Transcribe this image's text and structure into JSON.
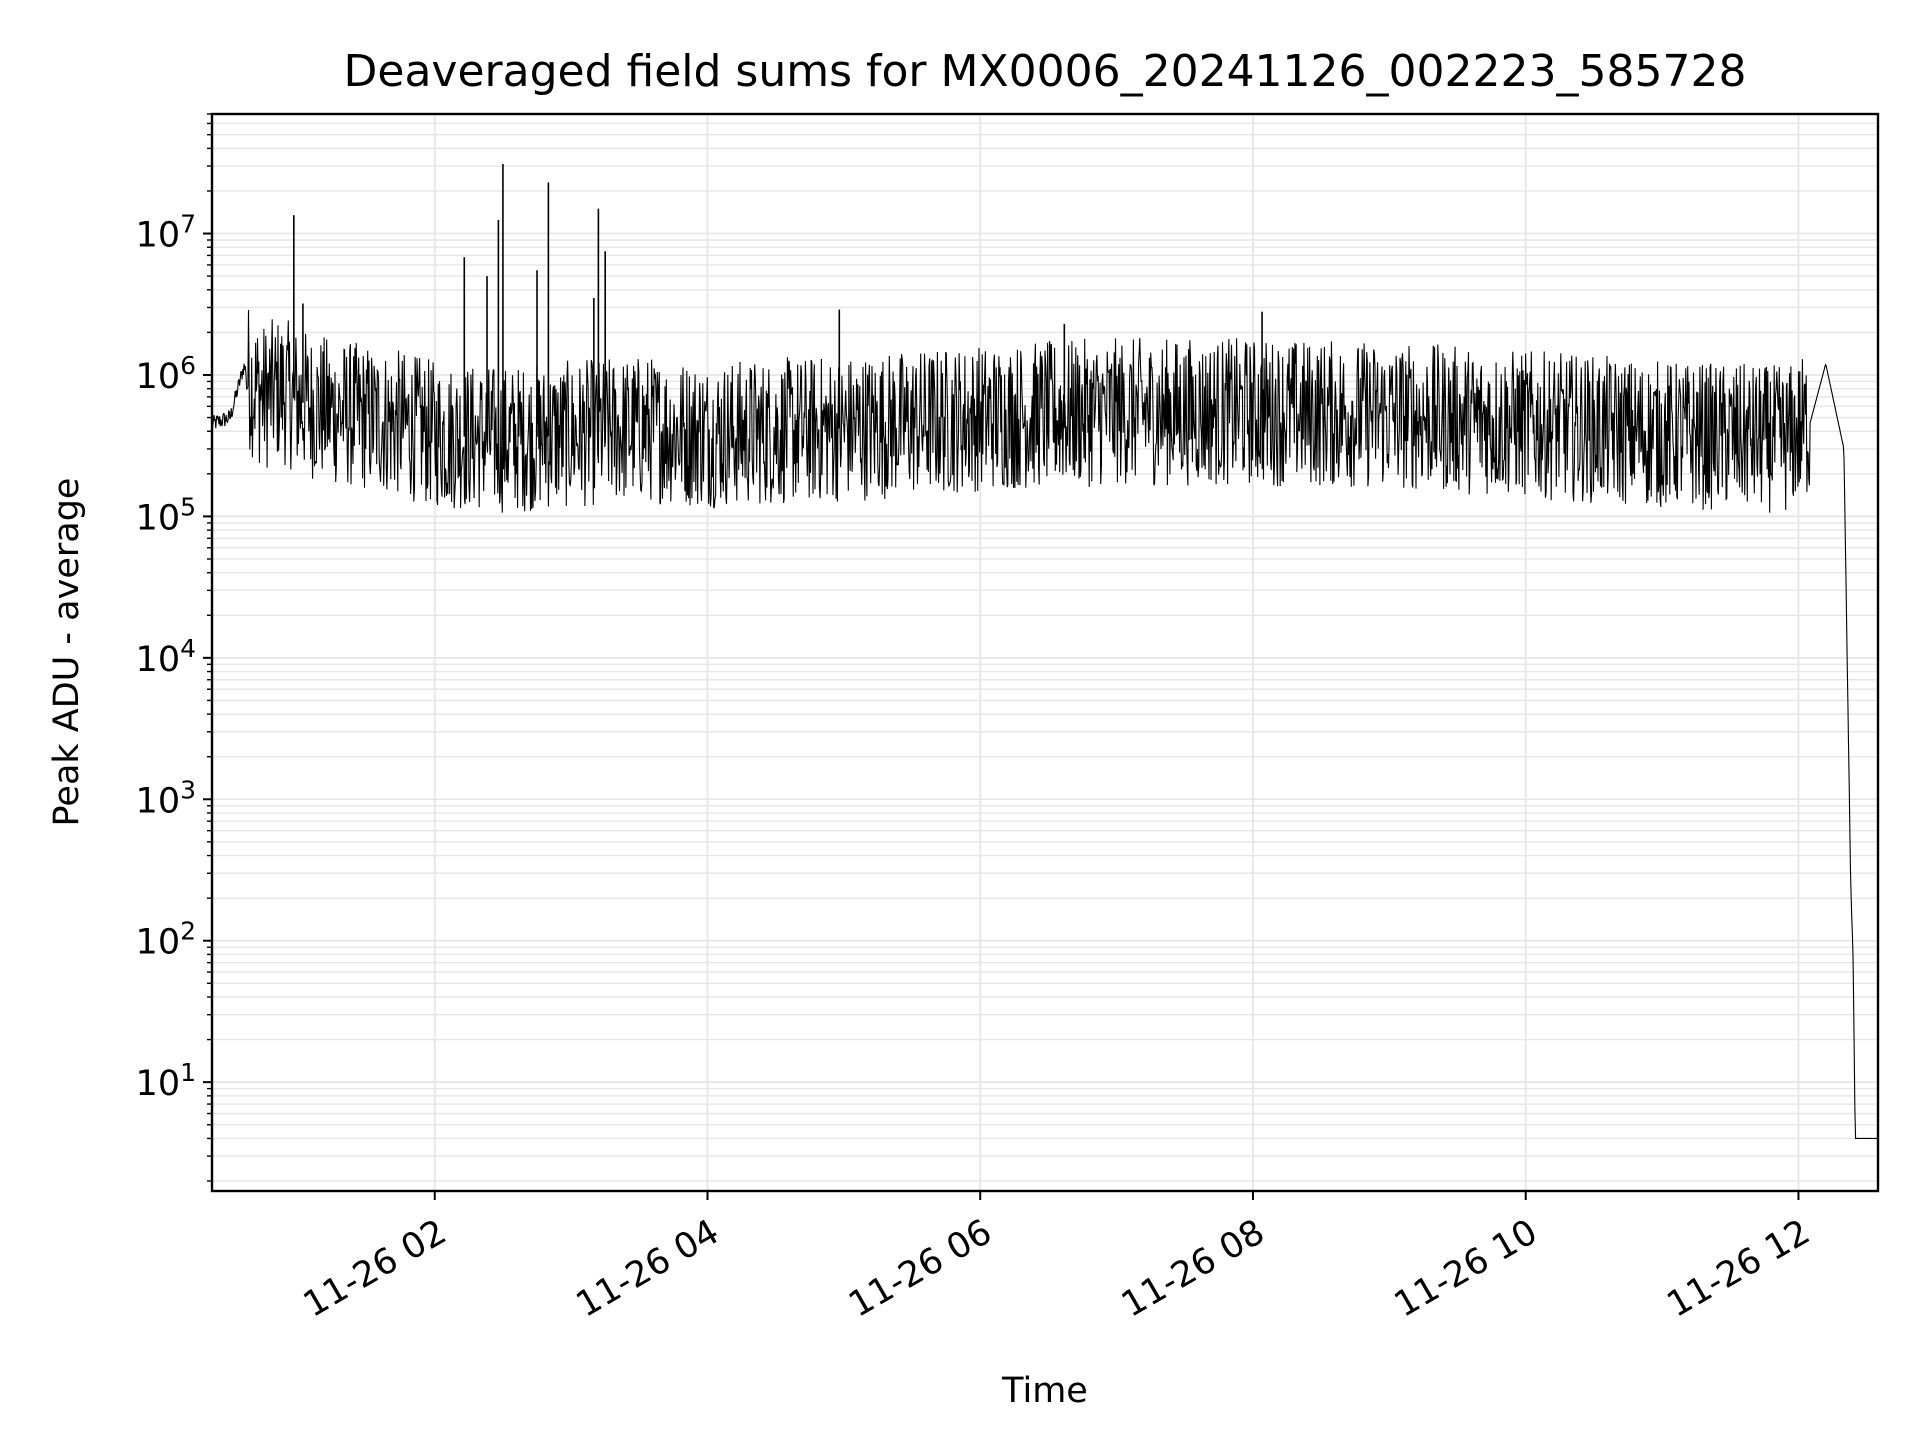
{
  "chart_data": {
    "type": "line",
    "title": "Deaveraged field sums for MX0006_20241126_002223_585728",
    "xlabel": "Time",
    "ylabel": "Peak ADU - average",
    "yscale": "log",
    "ylim": [
      1.7,
      70000000
    ],
    "xlim": [
      "2024-11-26 00:22",
      "2024-11-26 12:35"
    ],
    "grid": true,
    "x_ticks": [
      "11-26 02",
      "11-26 04",
      "11-26 06",
      "11-26 08",
      "11-26 10",
      "11-26 12"
    ],
    "y_ticks": [
      {
        "base": "10",
        "exp": "1",
        "value": 10
      },
      {
        "base": "10",
        "exp": "2",
        "value": 100
      },
      {
        "base": "10",
        "exp": "3",
        "value": 1000
      },
      {
        "base": "10",
        "exp": "4",
        "value": 10000
      },
      {
        "base": "10",
        "exp": "5",
        "value": 100000
      },
      {
        "base": "10",
        "exp": "6",
        "value": 1000000
      },
      {
        "base": "10",
        "exp": "7",
        "value": 10000000
      }
    ],
    "line_color": "#000000",
    "grid_color": "#e6e6e6",
    "series": [
      {
        "x": [
          "2024-11-26 00:22",
          "2024-11-26 00:30",
          "2024-11-26 00:36",
          "2024-11-26 00:40",
          "2024-11-26 00:45",
          "2024-11-26 00:52",
          "2024-11-26 01:00",
          "2024-11-26 01:15",
          "2024-11-26 01:30",
          "2024-11-26 01:45",
          "2024-11-26 02:00",
          "2024-11-26 02:30",
          "2024-11-26 03:00",
          "2024-11-26 03:30",
          "2024-11-26 04:00",
          "2024-11-26 05:00",
          "2024-11-26 06:00",
          "2024-11-26 07:00",
          "2024-11-26 08:00",
          "2024-11-26 09:00",
          "2024-11-26 10:00",
          "2024-11-26 11:00",
          "2024-11-26 11:55",
          "2024-11-26 12:05",
          "2024-11-26 12:12",
          "2024-11-26 12:20",
          "2024-11-26 12:23",
          "2024-11-26 12:24",
          "2024-11-26 12:25",
          "2024-11-26 12:35"
        ],
        "y": [
          450000,
          500000,
          1150000,
          850000,
          700000,
          800000,
          650000,
          550000,
          500000,
          450000,
          380000,
          350000,
          380000,
          420000,
          380000,
          420000,
          500000,
          550000,
          550000,
          520000,
          450000,
          380000,
          350000,
          450000,
          1200000,
          300000,
          250,
          80,
          4,
          4
        ]
      }
    ],
    "spikes": [
      {
        "x": "2024-11-26 00:58",
        "y": 13500000
      },
      {
        "x": "2024-11-26 01:02",
        "y": 3200000
      },
      {
        "x": "2024-11-26 02:13",
        "y": 6800000
      },
      {
        "x": "2024-11-26 02:23",
        "y": 5000000
      },
      {
        "x": "2024-11-26 02:28",
        "y": 12500000
      },
      {
        "x": "2024-11-26 02:30",
        "y": 31000000
      },
      {
        "x": "2024-11-26 02:45",
        "y": 5500000
      },
      {
        "x": "2024-11-26 02:50",
        "y": 23000000
      },
      {
        "x": "2024-11-26 03:10",
        "y": 3500000
      },
      {
        "x": "2024-11-26 03:12",
        "y": 15000000
      },
      {
        "x": "2024-11-26 03:15",
        "y": 7500000
      },
      {
        "x": "2024-11-26 04:58",
        "y": 2900000
      },
      {
        "x": "2024-11-26 06:37",
        "y": 2300000
      },
      {
        "x": "2024-11-26 08:04",
        "y": 2800000
      }
    ]
  }
}
